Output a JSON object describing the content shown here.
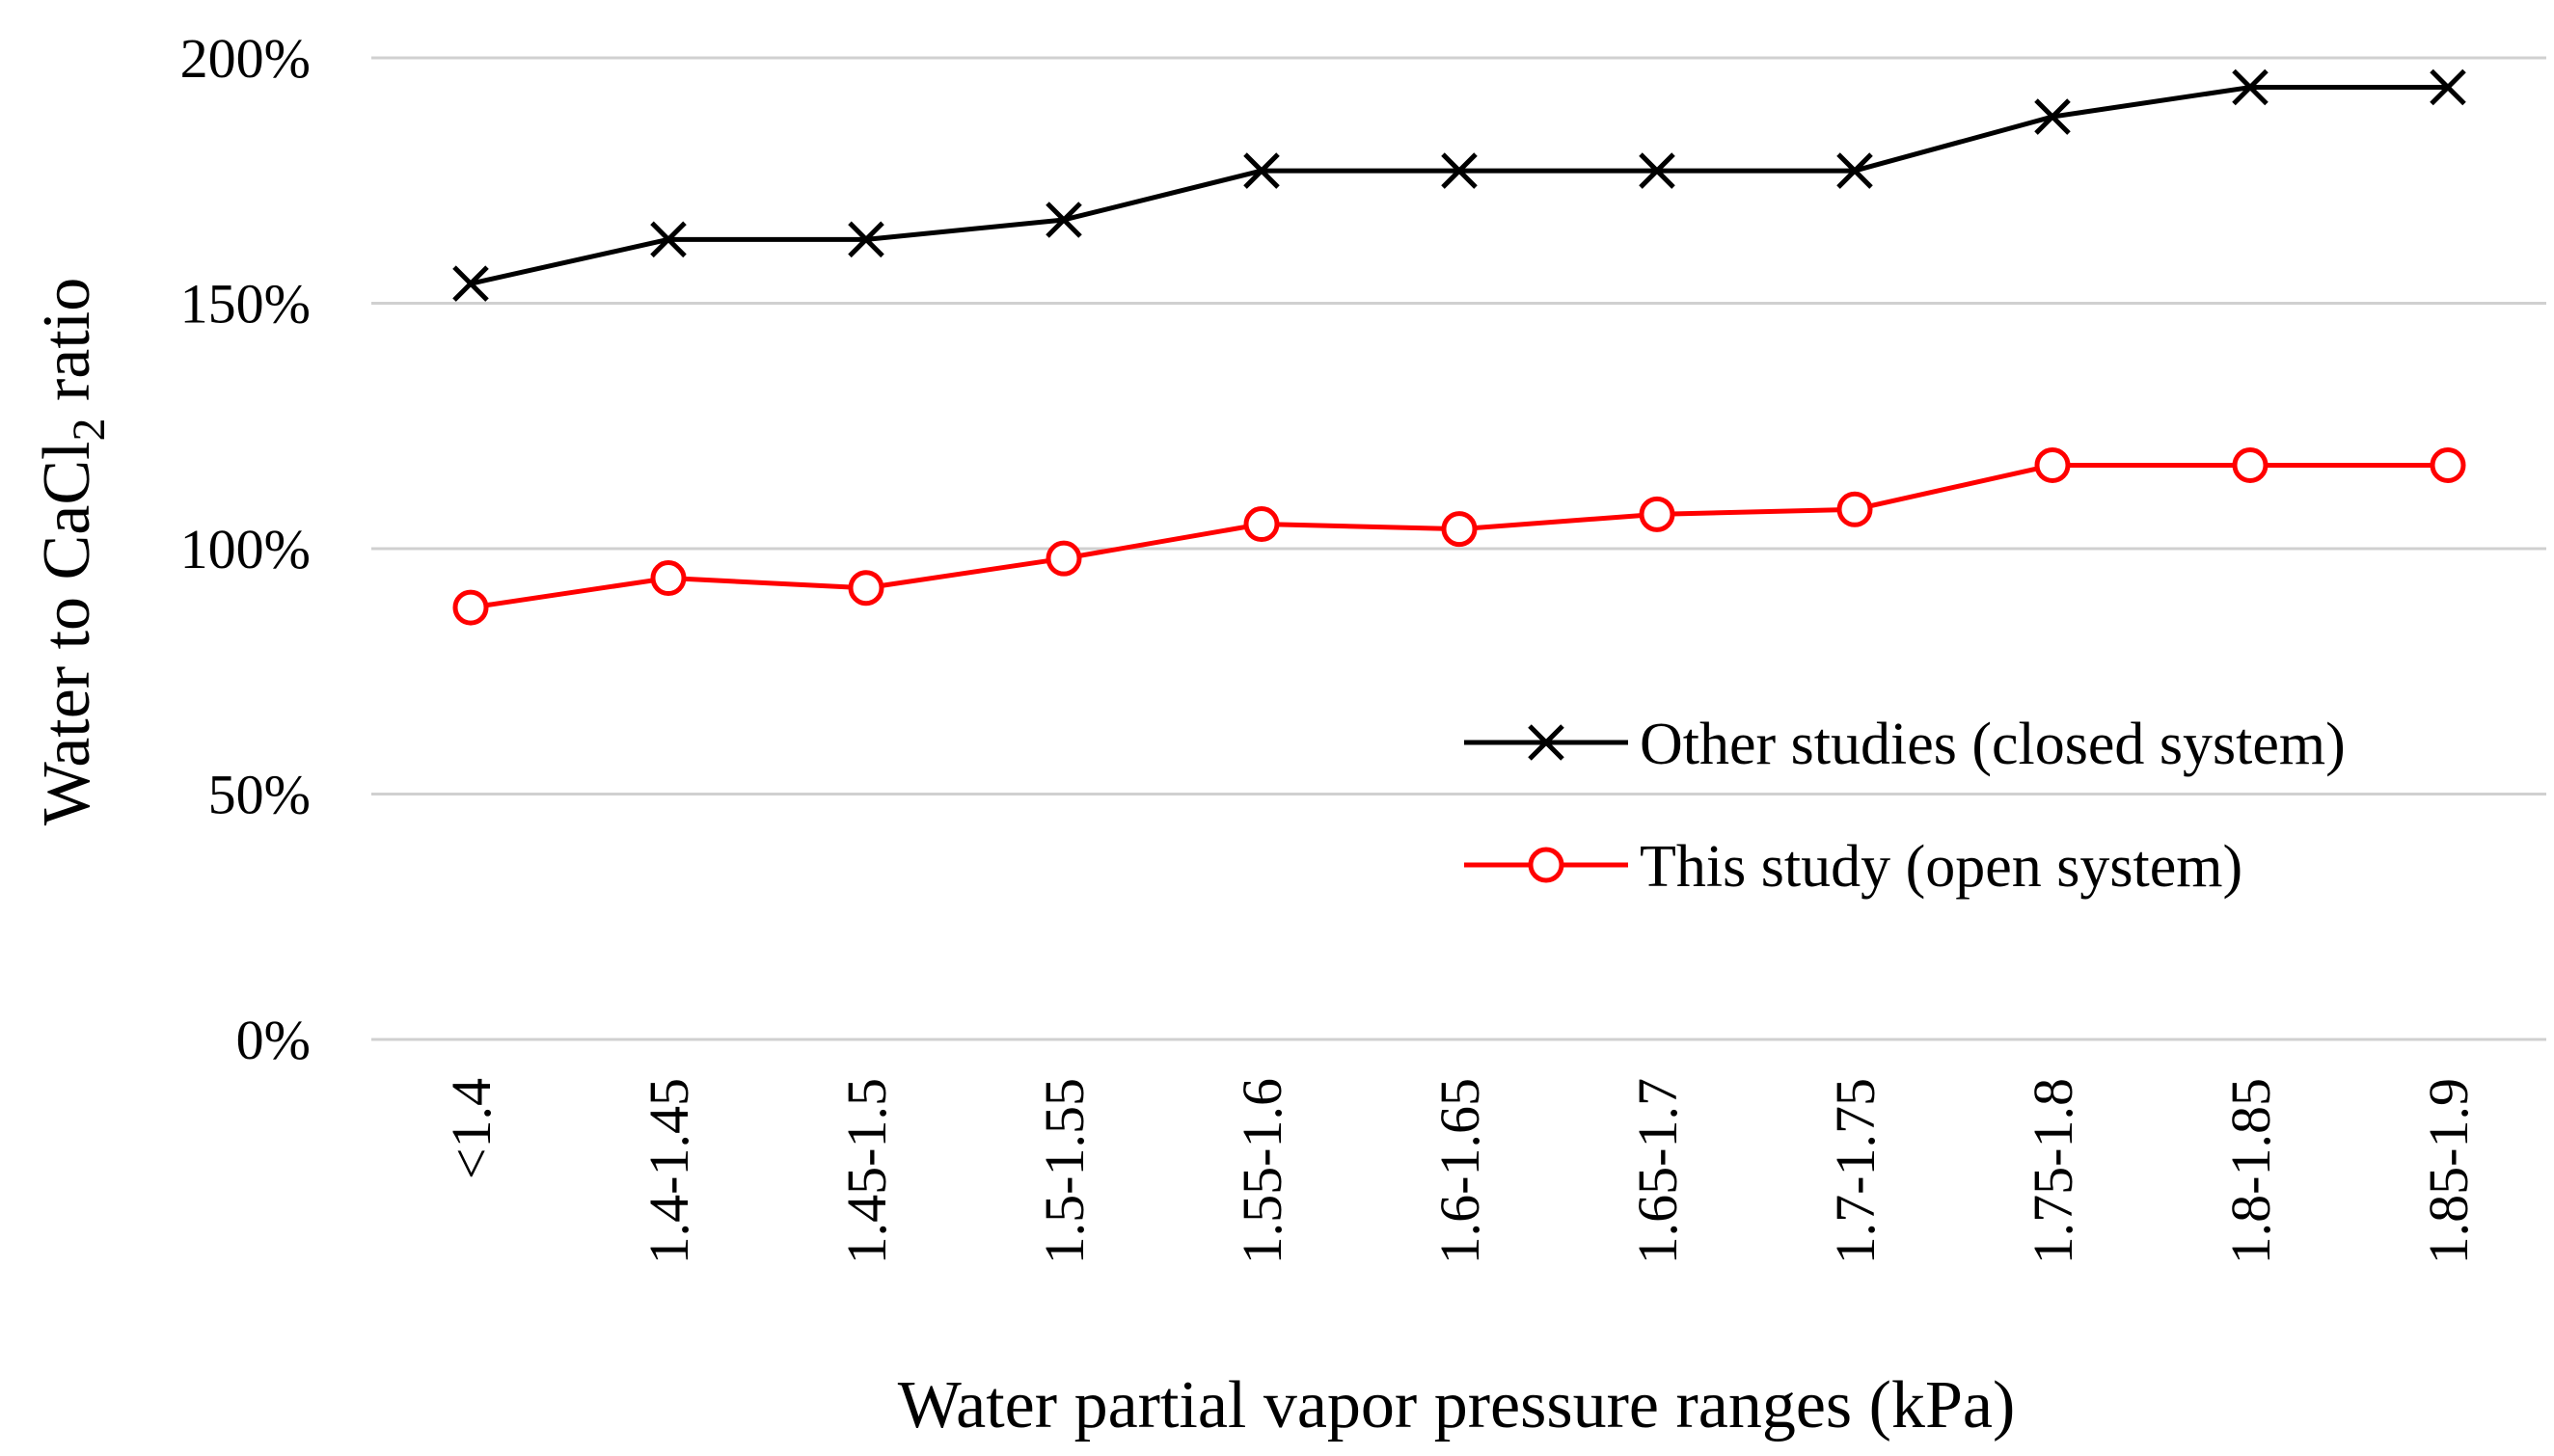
{
  "chart_data": {
    "type": "line",
    "categories": [
      "<1.4",
      "1.4-1.45",
      "1.45-1.5",
      "1.5-1.55",
      "1.55-1.6",
      "1.6-1.65",
      "1.65-1.7",
      "1.7-1.75",
      "1.75-1.8",
      "1.8-1.85",
      "1.85-1.9"
    ],
    "series": [
      {
        "name": "Other studies (closed system)",
        "color": "#000000",
        "marker": "x",
        "values": [
          1.54,
          1.63,
          1.63,
          1.67,
          1.77,
          1.77,
          1.77,
          1.77,
          1.88,
          1.94,
          1.94
        ]
      },
      {
        "name": "This study (open system)",
        "color": "#ff0000",
        "marker": "circle",
        "values": [
          0.88,
          0.94,
          0.92,
          0.98,
          1.05,
          1.04,
          1.07,
          1.08,
          1.17,
          1.17,
          1.17
        ]
      }
    ],
    "y_ticks": [
      "0%",
      "50%",
      "100%",
      "150%",
      "200%"
    ],
    "ylim": [
      0,
      2
    ],
    "xlabel": "Water partial vapor pressure ranges (kPa)",
    "ylabel": {
      "prefix": "Water to CaCl",
      "subscript": "2",
      "suffix": " ratio"
    },
    "grid": "horizontal",
    "legend_position": "right"
  }
}
